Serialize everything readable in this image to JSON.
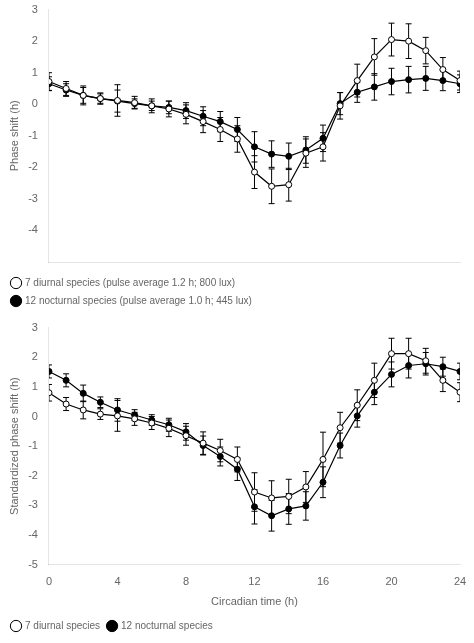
{
  "chart_data": [
    {
      "type": "line",
      "ylabel": "Phase shift (h)",
      "x": [
        0,
        1,
        2,
        3,
        4,
        5,
        6,
        7,
        8,
        9,
        10,
        11,
        12,
        13,
        14,
        15,
        16,
        17,
        18,
        19,
        20,
        21,
        22,
        23,
        24
      ],
      "series": [
        {
          "name": "12 nocturnal species (pulse average 1.0 h; 445 lux)",
          "color": "#000000",
          "marker": "filled_circle",
          "values": [
            0.65,
            0.45,
            0.28,
            0.18,
            0.1,
            0.02,
            -0.05,
            -0.1,
            -0.2,
            -0.38,
            -0.55,
            -0.8,
            -1.35,
            -1.58,
            -1.65,
            -1.45,
            -1.08,
            0.02,
            0.38,
            0.55,
            0.72,
            0.78,
            0.82,
            0.75,
            0.65
          ],
          "yerr": [
            0.22,
            0.2,
            0.25,
            0.15,
            0.35,
            0.15,
            0.15,
            0.2,
            0.25,
            0.3,
            0.32,
            0.38,
            0.48,
            0.42,
            0.42,
            0.42,
            0.42,
            0.35,
            0.32,
            0.42,
            0.42,
            0.42,
            0.38,
            0.32,
            0.28
          ]
        },
        {
          "name": "7 diurnal species (pulse average 1.2 h; 800 lux)",
          "color": "#000000",
          "marker": "open_circle",
          "values": [
            0.72,
            0.5,
            0.28,
            0.18,
            0.12,
            0.05,
            -0.05,
            -0.15,
            -0.32,
            -0.55,
            -0.8,
            -1.1,
            -2.15,
            -2.6,
            -2.55,
            -1.55,
            -1.35,
            -0.05,
            0.75,
            1.5,
            2.05,
            2.0,
            1.7,
            1.1,
            0.75
          ],
          "yerr": [
            0.28,
            0.22,
            0.3,
            0.18,
            0.5,
            0.2,
            0.22,
            0.25,
            0.3,
            0.35,
            0.38,
            0.42,
            0.52,
            0.55,
            0.52,
            0.45,
            0.45,
            0.42,
            0.52,
            0.58,
            0.52,
            0.55,
            0.42,
            0.38,
            0.3
          ]
        }
      ],
      "xlim": [
        0,
        24
      ],
      "xticks": [
        0,
        4,
        8,
        12,
        16,
        20,
        24
      ],
      "ylim": [
        -5,
        3
      ],
      "yticks": [
        -4,
        -3,
        -2,
        -1,
        0,
        1,
        2,
        3
      ],
      "grid": false,
      "legend": "lower left",
      "tick_labels": "y"
    },
    {
      "type": "line",
      "xlabel": "Circadian time (h)",
      "ylabel": "Standardized phase shift (h)",
      "x": [
        0,
        1,
        2,
        3,
        4,
        5,
        6,
        7,
        8,
        9,
        10,
        11,
        12,
        13,
        14,
        15,
        16,
        17,
        18,
        19,
        20,
        21,
        22,
        23,
        24
      ],
      "series": [
        {
          "name": "12 nocturnal species",
          "color": "#000000",
          "marker": "filled_circle",
          "values": [
            1.52,
            1.22,
            0.78,
            0.48,
            0.22,
            0.05,
            -0.12,
            -0.28,
            -0.52,
            -0.98,
            -1.35,
            -1.78,
            -3.05,
            -3.35,
            -3.12,
            -3.02,
            -2.22,
            -0.98,
            0.02,
            0.82,
            1.42,
            1.72,
            1.78,
            1.68,
            1.52
          ],
          "yerr": [
            0.22,
            0.22,
            0.28,
            0.18,
            0.38,
            0.18,
            0.18,
            0.22,
            0.28,
            0.32,
            0.32,
            0.38,
            0.58,
            0.52,
            0.52,
            0.48,
            0.52,
            0.42,
            0.38,
            0.42,
            0.42,
            0.42,
            0.38,
            0.32,
            0.28
          ]
        },
        {
          "name": "7 diurnal species",
          "color": "#000000",
          "marker": "open_circle",
          "values": [
            0.8,
            0.42,
            0.22,
            0.08,
            0.02,
            -0.08,
            -0.22,
            -0.4,
            -0.65,
            -0.9,
            -1.15,
            -1.45,
            -2.55,
            -2.75,
            -2.7,
            -2.38,
            -1.45,
            -0.38,
            0.38,
            1.22,
            2.12,
            2.12,
            1.88,
            1.22,
            0.82
          ],
          "yerr": [
            0.28,
            0.22,
            0.3,
            0.18,
            0.52,
            0.22,
            0.22,
            0.28,
            0.32,
            0.38,
            0.38,
            0.42,
            0.65,
            0.58,
            0.58,
            0.52,
            0.92,
            0.52,
            0.52,
            0.58,
            0.52,
            0.52,
            0.42,
            0.38,
            0.32
          ]
        }
      ],
      "xlim": [
        0,
        24
      ],
      "xticks": [
        0,
        4,
        8,
        12,
        16,
        20,
        24
      ],
      "ylim": [
        -5,
        3
      ],
      "yticks": [
        -5,
        -4,
        -3,
        -2,
        -1,
        0,
        1,
        2,
        3
      ],
      "grid": false,
      "legend": "lower left"
    }
  ]
}
